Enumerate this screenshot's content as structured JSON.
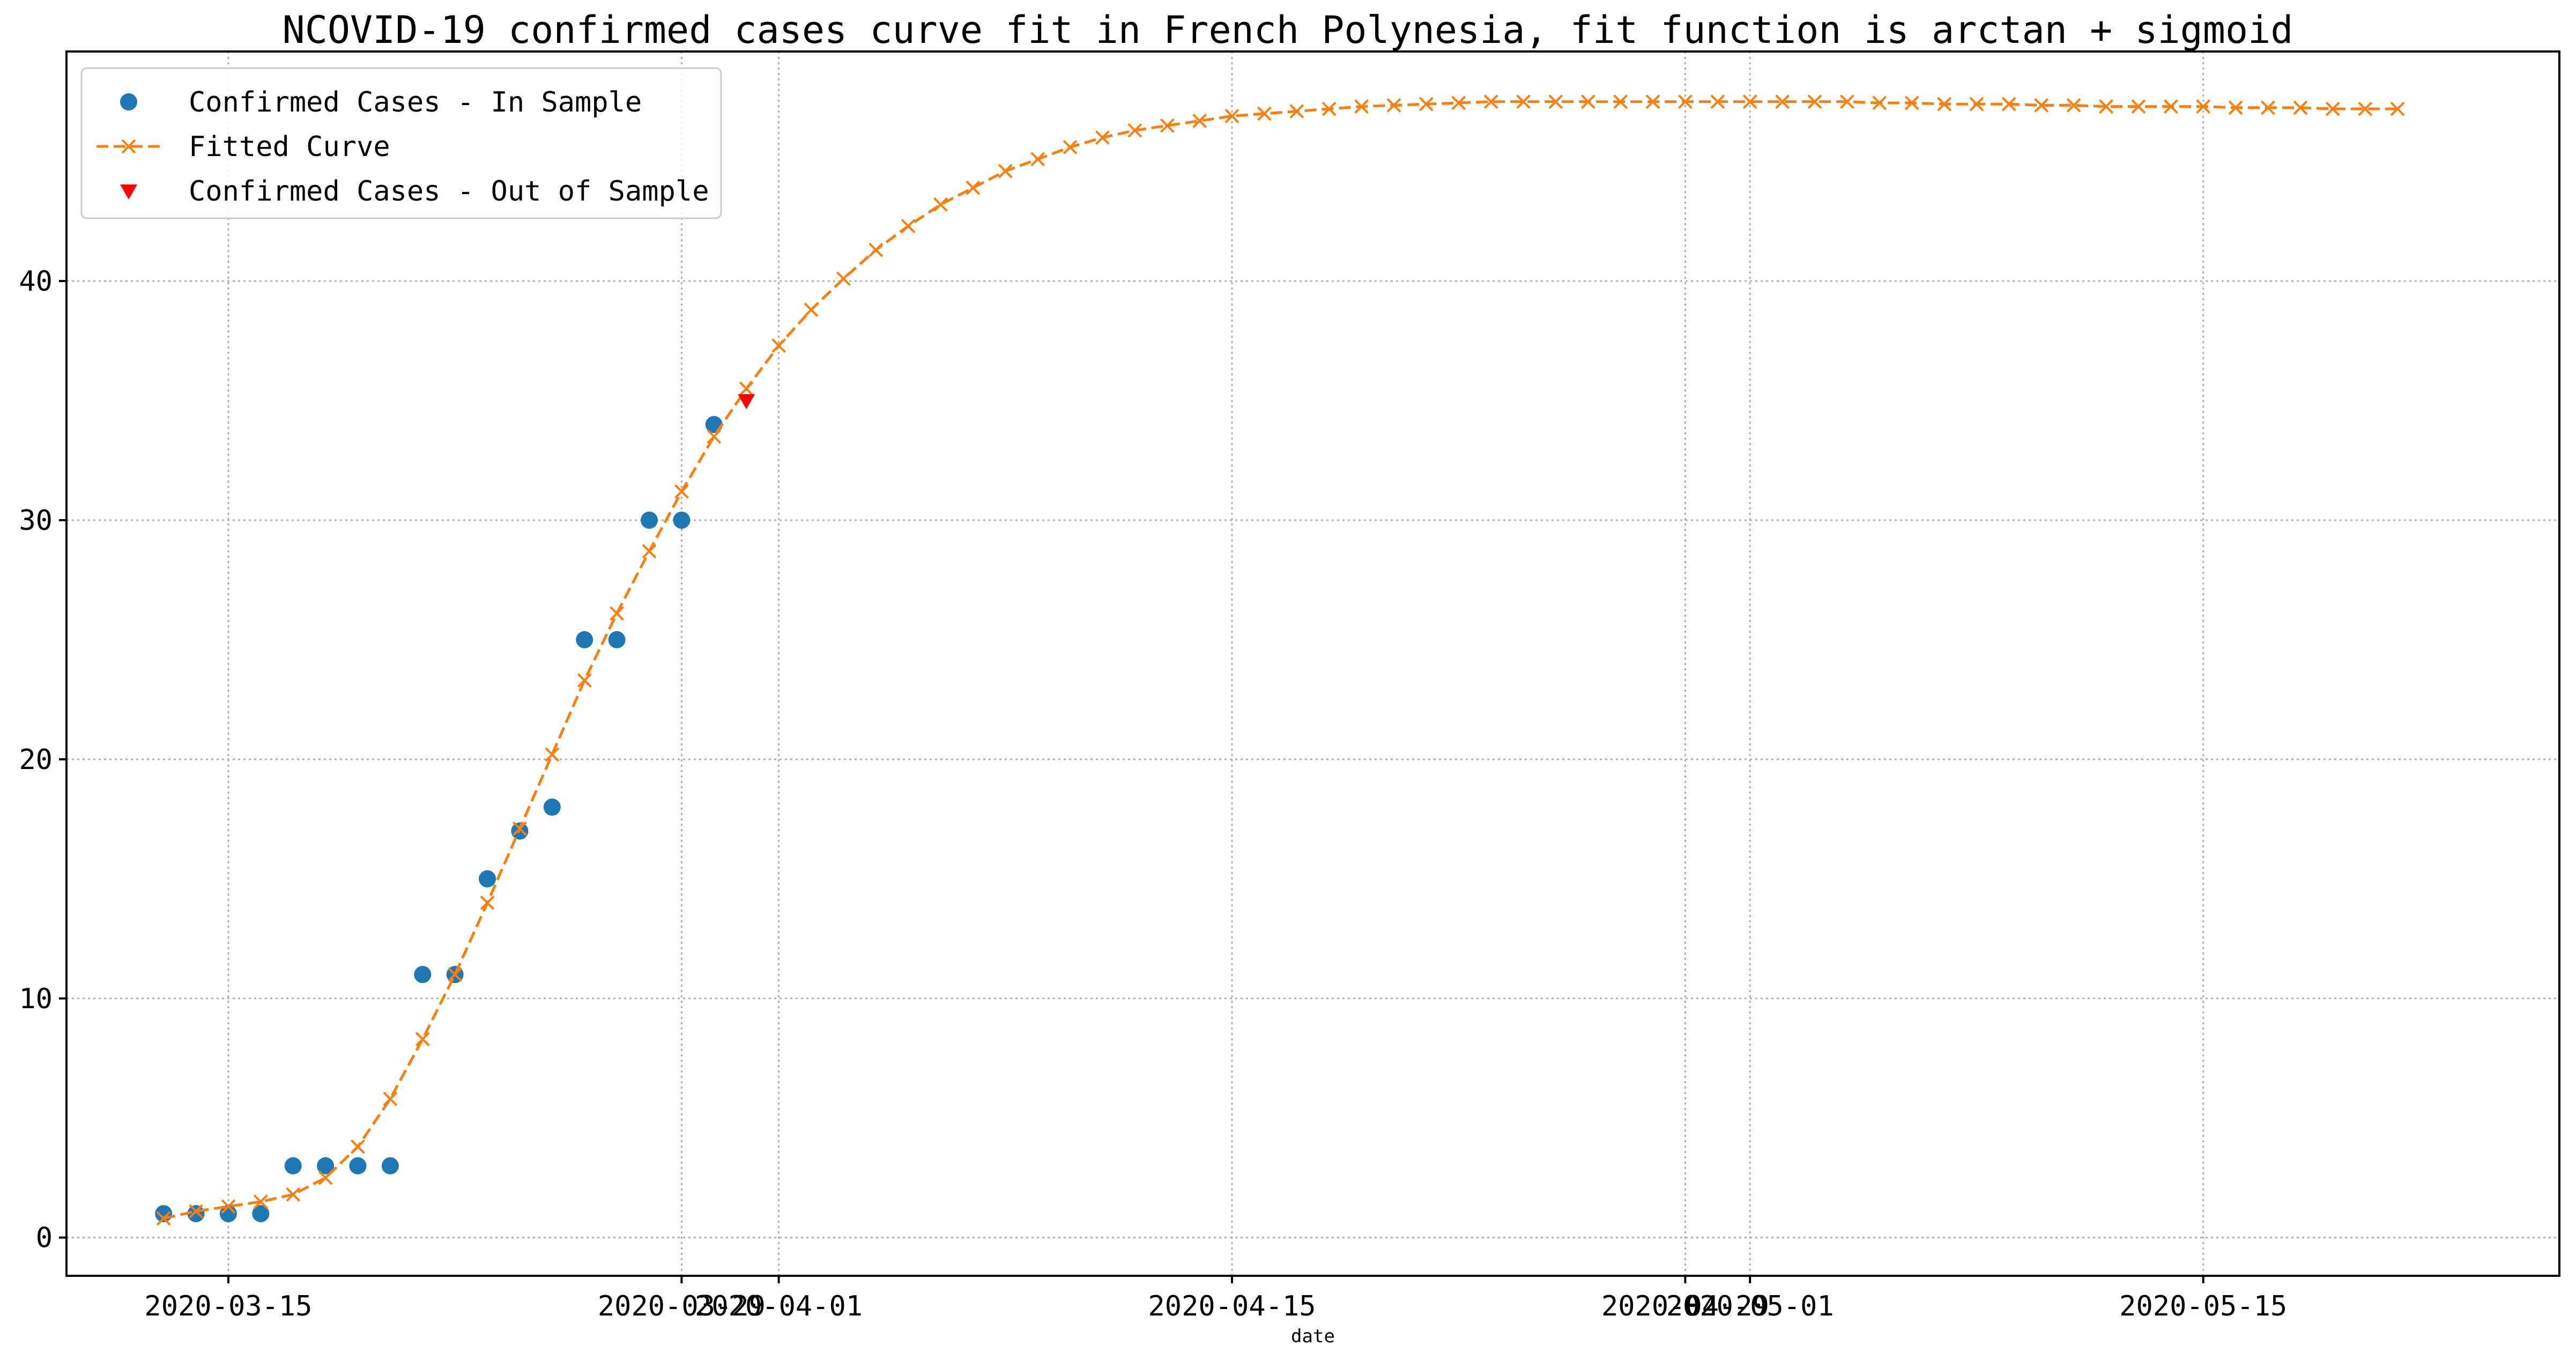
{
  "chart_data": {
    "type": "line",
    "title": "NCOVID-19 confirmed cases curve fit in French Polynesia, fit function is arctan + sigmoid",
    "xlabel": "date",
    "ylabel": "",
    "x_axis_type": "date",
    "x_range": [
      "2020-03-10",
      "2020-05-26"
    ],
    "ylim": [
      -1.6,
      49.6
    ],
    "x_ticks": [
      "2020-03-15",
      "2020-03-29",
      "2020-04-01",
      "2020-04-15",
      "2020-04-29",
      "2020-05-01",
      "2020-05-15"
    ],
    "y_ticks": [
      0,
      10,
      20,
      30,
      40
    ],
    "grid": true,
    "legend_position": "top-left",
    "colors": {
      "in_sample": "#1f77b4",
      "fitted": "#ff7f0e",
      "out_of_sample": "#ff0000"
    },
    "legend": [
      {
        "key": "in_sample",
        "label": "Confirmed Cases - In Sample",
        "marker": "circle"
      },
      {
        "key": "fitted",
        "label": "Fitted Curve",
        "marker": "x-dashed-line"
      },
      {
        "key": "out_of_sample",
        "label": "Confirmed Cases - Out of Sample",
        "marker": "triangle-down"
      }
    ],
    "series": [
      {
        "key": "in_sample",
        "style": "scatter",
        "x": [
          "2020-03-13",
          "2020-03-14",
          "2020-03-15",
          "2020-03-16",
          "2020-03-17",
          "2020-03-18",
          "2020-03-19",
          "2020-03-20",
          "2020-03-21",
          "2020-03-22",
          "2020-03-23",
          "2020-03-24",
          "2020-03-25",
          "2020-03-26",
          "2020-03-27",
          "2020-03-28",
          "2020-03-29",
          "2020-03-30"
        ],
        "y": [
          1,
          1,
          1,
          1,
          3,
          3,
          3,
          3,
          11,
          11,
          15,
          17,
          18,
          25,
          25,
          30,
          30,
          34
        ]
      },
      {
        "key": "fitted",
        "style": "dashed-line-x",
        "x_start": "2020-03-13",
        "x_step_days": 1,
        "y": [
          0.8,
          1.1,
          1.3,
          1.5,
          1.8,
          2.5,
          3.8,
          5.8,
          8.3,
          11.0,
          14.0,
          17.1,
          20.2,
          23.3,
          26.1,
          28.7,
          31.2,
          33.5,
          35.5,
          37.3,
          38.8,
          40.1,
          41.3,
          42.3,
          43.2,
          43.9,
          44.6,
          45.1,
          45.6,
          46.0,
          46.3,
          46.5,
          46.7,
          46.9,
          47.0,
          47.1,
          47.2,
          47.3,
          47.35,
          47.4,
          47.45,
          47.5,
          47.5,
          47.5,
          47.5,
          47.5,
          47.5,
          47.5,
          47.5,
          47.5,
          47.5,
          47.5,
          47.5,
          47.45,
          47.45,
          47.4,
          47.4,
          47.4,
          47.35,
          47.35,
          47.3,
          47.3,
          47.3,
          47.3,
          47.25,
          47.25,
          47.25,
          47.2,
          47.2,
          47.2
        ]
      },
      {
        "key": "out_of_sample",
        "style": "scatter-triangle",
        "x": [
          "2020-03-31"
        ],
        "y": [
          35
        ]
      }
    ]
  }
}
